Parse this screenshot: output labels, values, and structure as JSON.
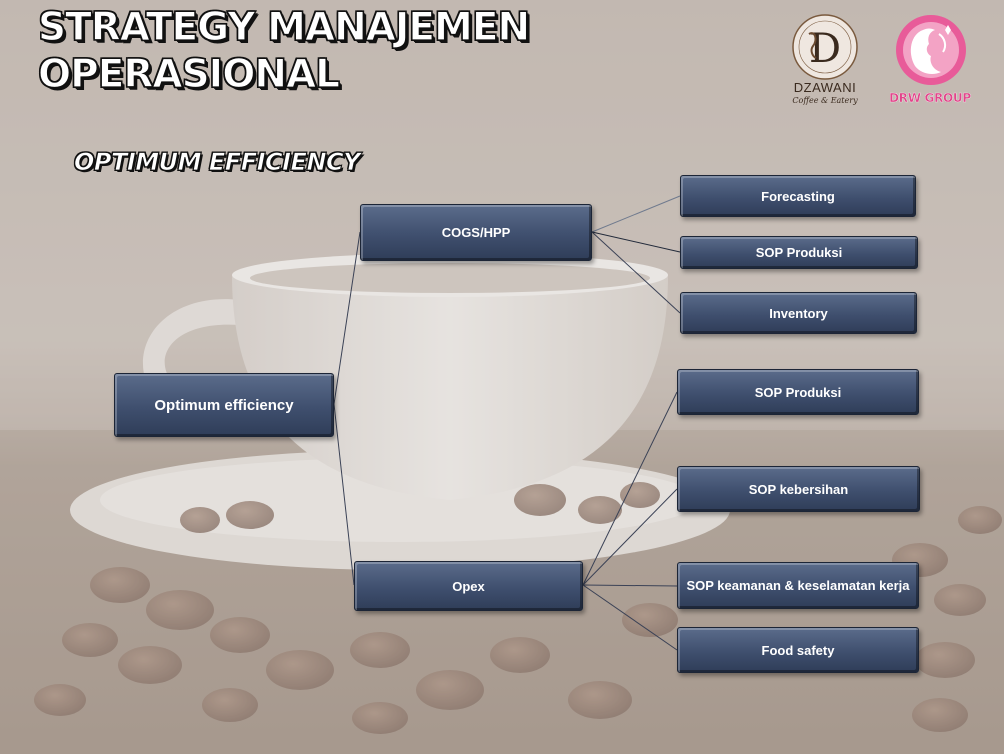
{
  "header": {
    "title_line1": "STRATEGY MANAJEMEN",
    "title_line2": "OPERASIONAL",
    "subtitle": "OPTIMUM EFFICIENCY"
  },
  "logos": {
    "dzawani": {
      "letter": "D",
      "name": "DZAWANI",
      "tagline": "Coffee & Eatery"
    },
    "drw": {
      "name": "DRW GROUP"
    }
  },
  "diagram": {
    "root": "Optimum efficiency",
    "branches": [
      {
        "label": "COGS/HPP",
        "children": [
          "Forecasting",
          "SOP Produksi",
          "Inventory"
        ]
      },
      {
        "label": "Opex",
        "children": [
          "SOP Produksi",
          "SOP kebersihan",
          "SOP keamanan & keselamatan kerja",
          "Food safety"
        ]
      }
    ]
  },
  "colors": {
    "node_fill": "#3f4f6e",
    "node_border": "#1c2536",
    "connector": "#3b4256",
    "drw_pink": "#e1458a"
  }
}
